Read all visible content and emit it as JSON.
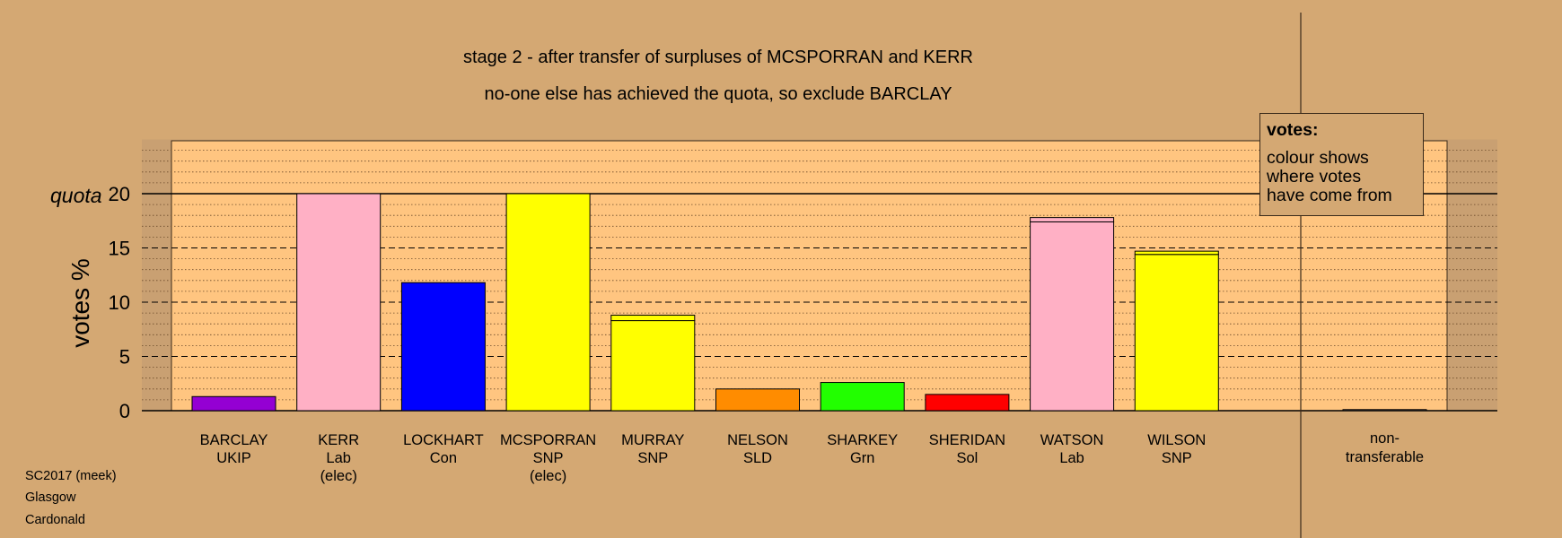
{
  "titles": {
    "line1": "stage 2 - after transfer of surpluses of MCSPORRAN and KERR",
    "line2": "no-one else has achieved the quota, so exclude BARCLAY"
  },
  "legend": {
    "title": "votes:",
    "line1": "colour shows",
    "line2": "where votes",
    "line3": "have come from"
  },
  "footer": {
    "line1": "SC2017 (meek)",
    "line2": "Glasgow",
    "line3": "Cardonald"
  },
  "chart_data": {
    "type": "bar",
    "stacked": true,
    "ylabel": "votes %",
    "ylim": [
      0,
      25
    ],
    "yticks": [
      0,
      5,
      10,
      15,
      20
    ],
    "quota": 20,
    "quota_label": "quota",
    "grid": "dotted minor lines every 1%, dashed major lines every 5%",
    "categories": [
      {
        "name": "BARCLAY",
        "party": "UKIP",
        "note": ""
      },
      {
        "name": "KERR",
        "party": "Lab",
        "note": "(elec)"
      },
      {
        "name": "LOCKHART",
        "party": "Con",
        "note": ""
      },
      {
        "name": "MCSPORRAN",
        "party": "SNP",
        "note": "(elec)"
      },
      {
        "name": "MURRAY",
        "party": "SNP",
        "note": ""
      },
      {
        "name": "NELSON",
        "party": "SLD",
        "note": ""
      },
      {
        "name": "SHARKEY",
        "party": "Grn",
        "note": ""
      },
      {
        "name": "SHERIDAN",
        "party": "Sol",
        "note": ""
      },
      {
        "name": "WATSON",
        "party": "Lab",
        "note": ""
      },
      {
        "name": "WILSON",
        "party": "SNP",
        "note": ""
      }
    ],
    "bars": [
      {
        "segments": [
          {
            "value": 1.3,
            "color": "#9400d3"
          }
        ]
      },
      {
        "segments": [
          {
            "value": 20.0,
            "color": "#ffb0c5"
          }
        ]
      },
      {
        "segments": [
          {
            "value": 11.8,
            "color": "#0000ff"
          }
        ]
      },
      {
        "segments": [
          {
            "value": 20.0,
            "color": "#ffff00"
          }
        ]
      },
      {
        "segments": [
          {
            "value": 8.3,
            "color": "#ffff00"
          },
          {
            "value": 0.5,
            "color": "#ffff00"
          }
        ]
      },
      {
        "segments": [
          {
            "value": 2.0,
            "color": "#ff8c00"
          }
        ]
      },
      {
        "segments": [
          {
            "value": 2.6,
            "color": "#22ff00"
          }
        ]
      },
      {
        "segments": [
          {
            "value": 1.5,
            "color": "#ff0000"
          }
        ]
      },
      {
        "segments": [
          {
            "value": 17.4,
            "color": "#ffb0c5"
          },
          {
            "value": 0.4,
            "color": "#ffb0c5"
          }
        ]
      },
      {
        "segments": [
          {
            "value": 14.4,
            "color": "#ffff00"
          },
          {
            "value": 0.3,
            "color": "#ffff00"
          }
        ]
      }
    ],
    "nontransferable": {
      "label1": "non-",
      "label2": "transferable",
      "value": 0.1
    },
    "colors": {
      "background": "#d4a873",
      "plot_background": "#ffc580",
      "plot_background_dark": "#c9a072"
    }
  }
}
